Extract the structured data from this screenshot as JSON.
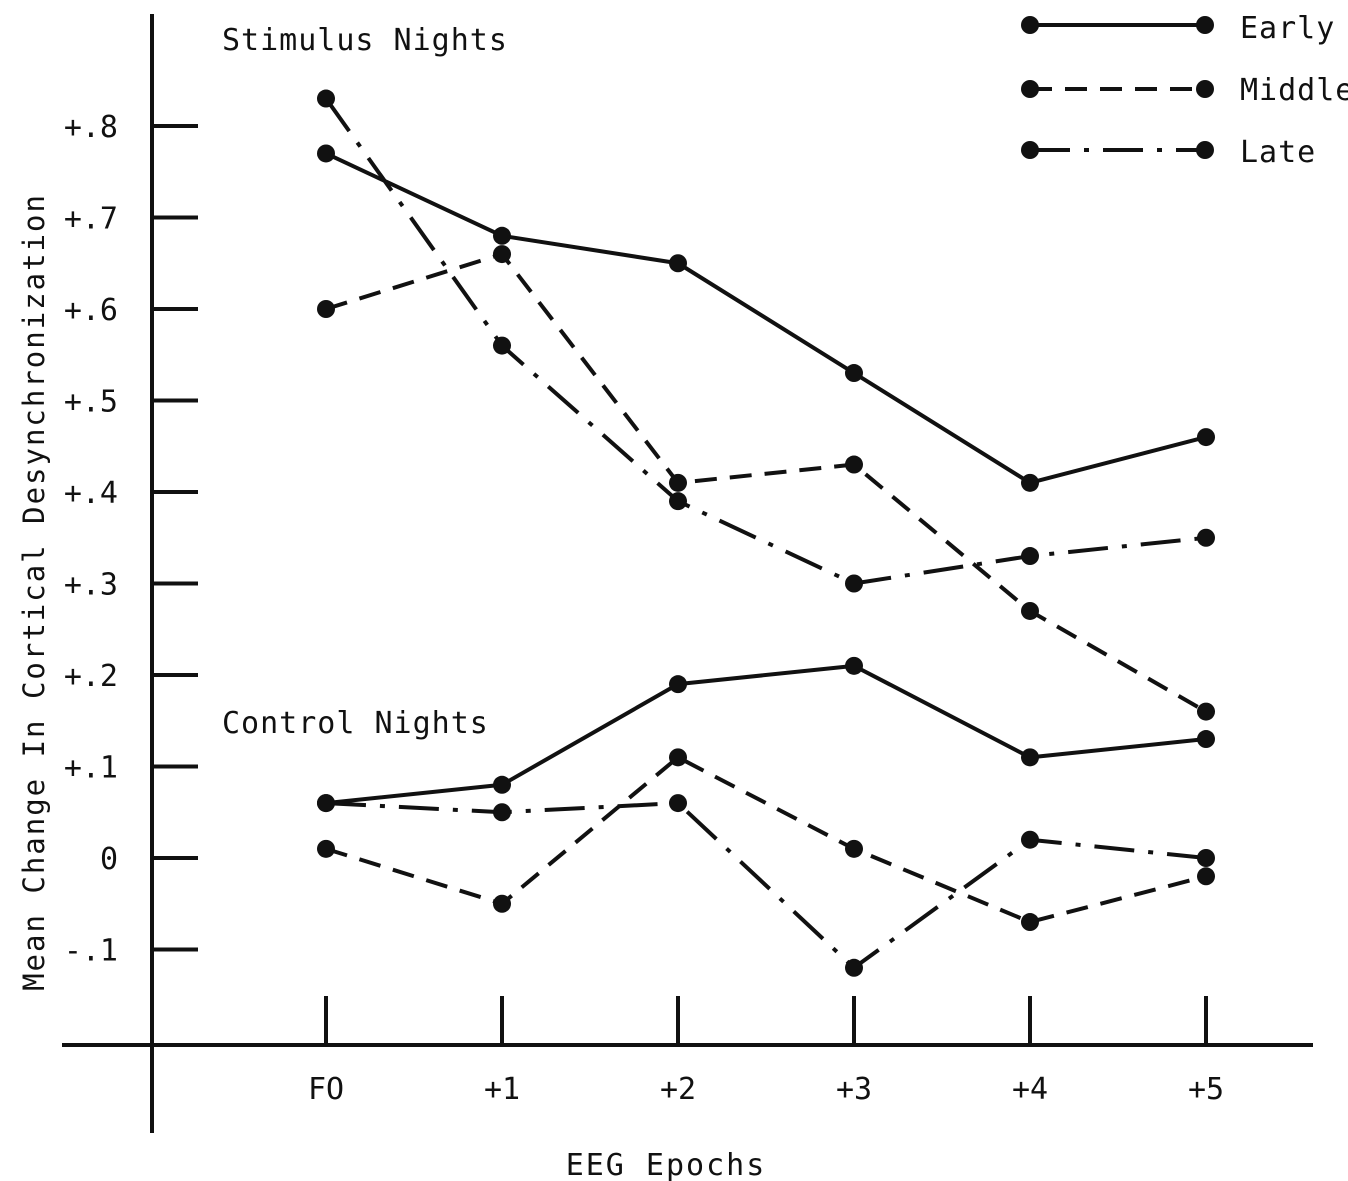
{
  "chart_data": {
    "type": "line",
    "xlabel": "EEG Epochs",
    "ylabel": "Mean Change In Cortical Desynchronization",
    "categories": [
      "FO",
      "+1",
      "+2",
      "+3",
      "+4",
      "+5"
    ],
    "y_ticks": [
      {
        "value": 0.8,
        "label": "+.8"
      },
      {
        "value": 0.7,
        "label": "+.7"
      },
      {
        "value": 0.6,
        "label": "+.6"
      },
      {
        "value": 0.5,
        "label": "+.5"
      },
      {
        "value": 0.4,
        "label": "+.4"
      },
      {
        "value": 0.3,
        "label": "+.3"
      },
      {
        "value": 0.2,
        "label": "+.2"
      },
      {
        "value": 0.1,
        "label": "+.1"
      },
      {
        "value": 0.0,
        "label": "0"
      },
      {
        "value": -0.1,
        "label": "-.1"
      }
    ],
    "ylim": [
      -0.2,
      0.92
    ],
    "grid": false,
    "legend": {
      "position": "top-right",
      "entries": [
        {
          "name": "Early",
          "style": "solid"
        },
        {
          "name": "Middle",
          "style": "dashed"
        },
        {
          "name": "Late",
          "style": "dash-dot"
        }
      ]
    },
    "groups": [
      {
        "label": "Stimulus Nights",
        "series": [
          {
            "name": "Early",
            "style": "solid",
            "values": [
              0.77,
              0.68,
              0.65,
              0.53,
              0.41,
              0.46
            ]
          },
          {
            "name": "Middle",
            "style": "dashed",
            "values": [
              0.6,
              0.66,
              0.41,
              0.43,
              0.27,
              0.16
            ]
          },
          {
            "name": "Late",
            "style": "dash-dot",
            "values": [
              0.83,
              0.56,
              0.39,
              0.3,
              0.33,
              0.35
            ]
          }
        ]
      },
      {
        "label": "Control Nights",
        "series": [
          {
            "name": "Early",
            "style": "solid",
            "values": [
              0.06,
              0.08,
              0.19,
              0.21,
              0.11,
              0.13
            ]
          },
          {
            "name": "Middle",
            "style": "dashed",
            "values": [
              0.01,
              -0.05,
              0.11,
              0.01,
              -0.07,
              -0.02
            ]
          },
          {
            "name": "Late",
            "style": "dash-dot",
            "values": [
              0.06,
              0.05,
              0.06,
              -0.12,
              0.02,
              0.0
            ]
          }
        ]
      }
    ]
  }
}
